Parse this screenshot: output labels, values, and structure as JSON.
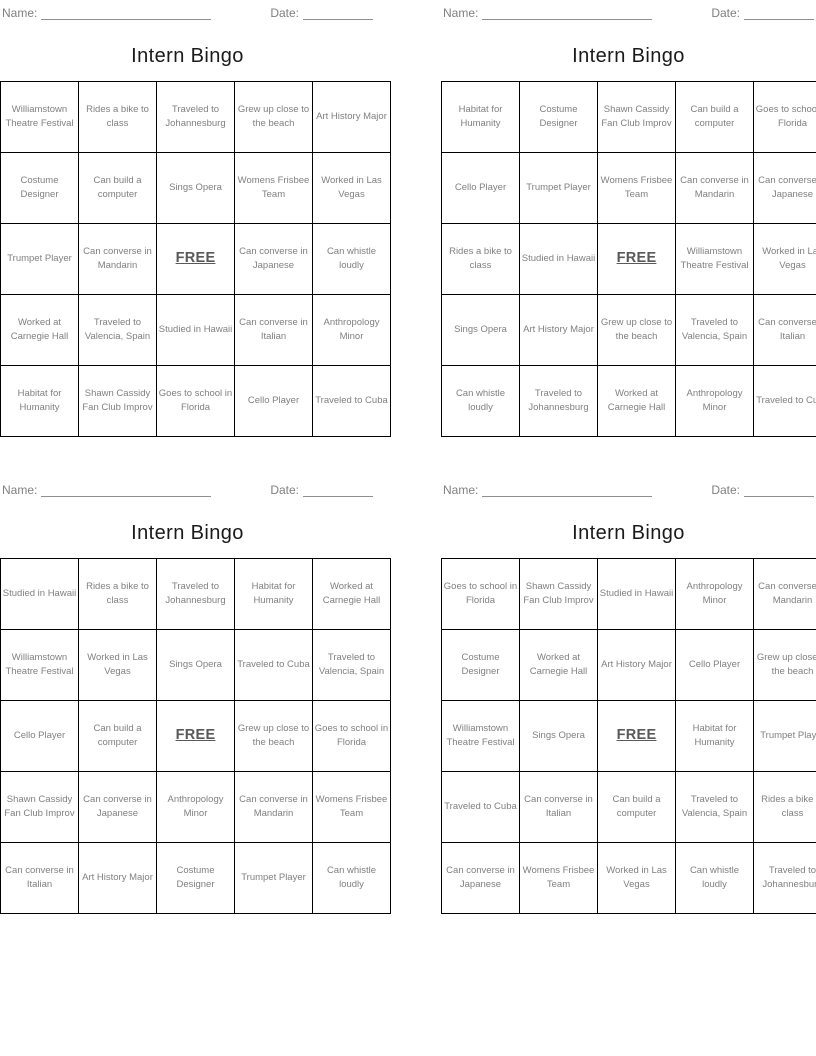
{
  "title": "Intern Bingo",
  "labels": {
    "name": "Name:",
    "date": "Date:"
  },
  "free_label": "FREE",
  "colors": {
    "cell_text": "#808080",
    "free_text": "#595959",
    "grid_border": "#000000",
    "title_text": "#1a1a1a",
    "header_label": "#808080"
  },
  "cards": [
    {
      "position": "top-left",
      "cells": [
        [
          "Williamstown Theatre Festival",
          "Rides a bike to class",
          "Traveled to Johannesburg",
          "Grew up close to the beach",
          "Art History Major"
        ],
        [
          "Costume Designer",
          "Can build a computer",
          "Sings Opera",
          "Womens Frisbee Team",
          "Worked in Las Vegas"
        ],
        [
          "Trumpet Player",
          "Can converse in Mandarin",
          "FREE",
          "Can converse in Japanese",
          "Can whistle loudly"
        ],
        [
          "Worked at Carnegie Hall",
          "Traveled to Valencia, Spain",
          "Studied in Hawaii",
          "Can converse in Italian",
          "Anthropology Minor"
        ],
        [
          "Habitat for Humanity",
          "Shawn Cassidy Fan Club Improv",
          "Goes to school in Florida",
          "Cello Player",
          "Traveled to Cuba"
        ]
      ]
    },
    {
      "position": "top-right",
      "cells": [
        [
          "Habitat for Humanity",
          "Costume Designer",
          "Shawn Cassidy Fan Club Improv",
          "Can build a computer",
          "Goes to school in Florida"
        ],
        [
          "Cello Player",
          "Trumpet Player",
          "Womens Frisbee Team",
          "Can converse in Mandarin",
          "Can converse in Japanese"
        ],
        [
          "Rides a bike to class",
          "Studied in Hawaii",
          "FREE",
          "Williamstown Theatre Festival",
          "Worked in Las Vegas"
        ],
        [
          "Sings Opera",
          "Art History Major",
          "Grew up close to the beach",
          "Traveled to Valencia, Spain",
          "Can converse in Italian"
        ],
        [
          "Can whistle loudly",
          "Traveled to Johannesburg",
          "Worked at Carnegie Hall",
          "Anthropology Minor",
          "Traveled to Cuba"
        ]
      ]
    },
    {
      "position": "bottom-left",
      "cells": [
        [
          "Studied in Hawaii",
          "Rides a bike to class",
          "Traveled to Johannesburg",
          "Habitat for Humanity",
          "Worked at Carnegie Hall"
        ],
        [
          "Williamstown Theatre Festival",
          "Worked in Las Vegas",
          "Sings Opera",
          "Traveled to Cuba",
          "Traveled to Valencia, Spain"
        ],
        [
          "Cello Player",
          "Can build a computer",
          "FREE",
          "Grew up close to the beach",
          "Goes to school in Florida"
        ],
        [
          "Shawn Cassidy Fan Club Improv",
          "Can converse in Japanese",
          "Anthropology Minor",
          "Can converse in Mandarin",
          "Womens Frisbee Team"
        ],
        [
          "Can converse in Italian",
          "Art History Major",
          "Costume Designer",
          "Trumpet Player",
          "Can whistle loudly"
        ]
      ]
    },
    {
      "position": "bottom-right",
      "cells": [
        [
          "Goes to school in Florida",
          "Shawn Cassidy Fan Club Improv",
          "Studied in Hawaii",
          "Anthropology Minor",
          "Can converse in Mandarin"
        ],
        [
          "Costume Designer",
          "Worked at Carnegie Hall",
          "Art History Major",
          "Cello Player",
          "Grew up close to the beach"
        ],
        [
          "Williamstown Theatre Festival",
          "Sings Opera",
          "FREE",
          "Habitat for Humanity",
          "Trumpet Player"
        ],
        [
          "Traveled to Cuba",
          "Can converse in Italian",
          "Can build a computer",
          "Traveled to Valencia, Spain",
          "Rides a bike to class"
        ],
        [
          "Can converse in Japanese",
          "Womens Frisbee Team",
          "Worked in Las Vegas",
          "Can whistle loudly",
          "Traveled to Johannesburg"
        ]
      ]
    }
  ]
}
